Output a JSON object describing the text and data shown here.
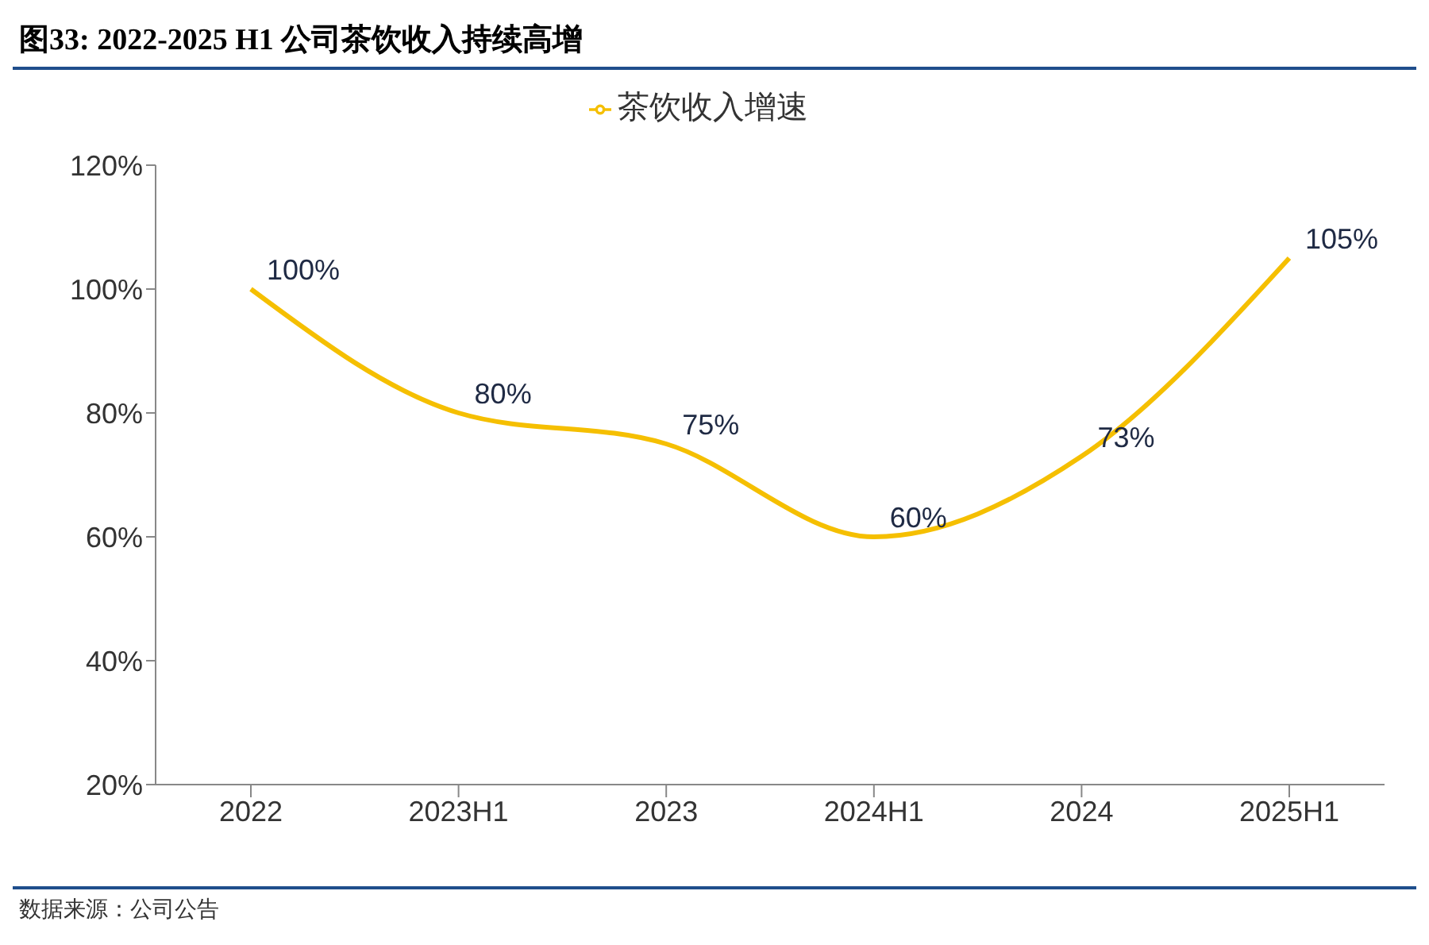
{
  "chart_data": {
    "type": "line",
    "title": "图33: 2022-2025 H1 公司茶饮收入持续高增",
    "categories": [
      "2022",
      "2023H1",
      "2023",
      "2024H1",
      "2024",
      "2025H1"
    ],
    "series": [
      {
        "name": "茶饮收入增速",
        "color": "#f5bf00",
        "values": [
          100,
          80,
          75,
          60,
          73,
          105
        ],
        "value_labels": [
          "100%",
          "80%",
          "75%",
          "60%",
          "73%",
          "105%"
        ]
      }
    ],
    "ylim": [
      20,
      120
    ],
    "yticks": [
      {
        "value": 20,
        "label": "20%"
      },
      {
        "value": 40,
        "label": "40%"
      },
      {
        "value": 60,
        "label": "60%"
      },
      {
        "value": 80,
        "label": "80%"
      },
      {
        "value": 100,
        "label": "100%"
      },
      {
        "value": 120,
        "label": "120%"
      }
    ],
    "legend": "top",
    "marker": "none",
    "grid": false,
    "annotations": [
      "数据来源：公司公告"
    ]
  }
}
